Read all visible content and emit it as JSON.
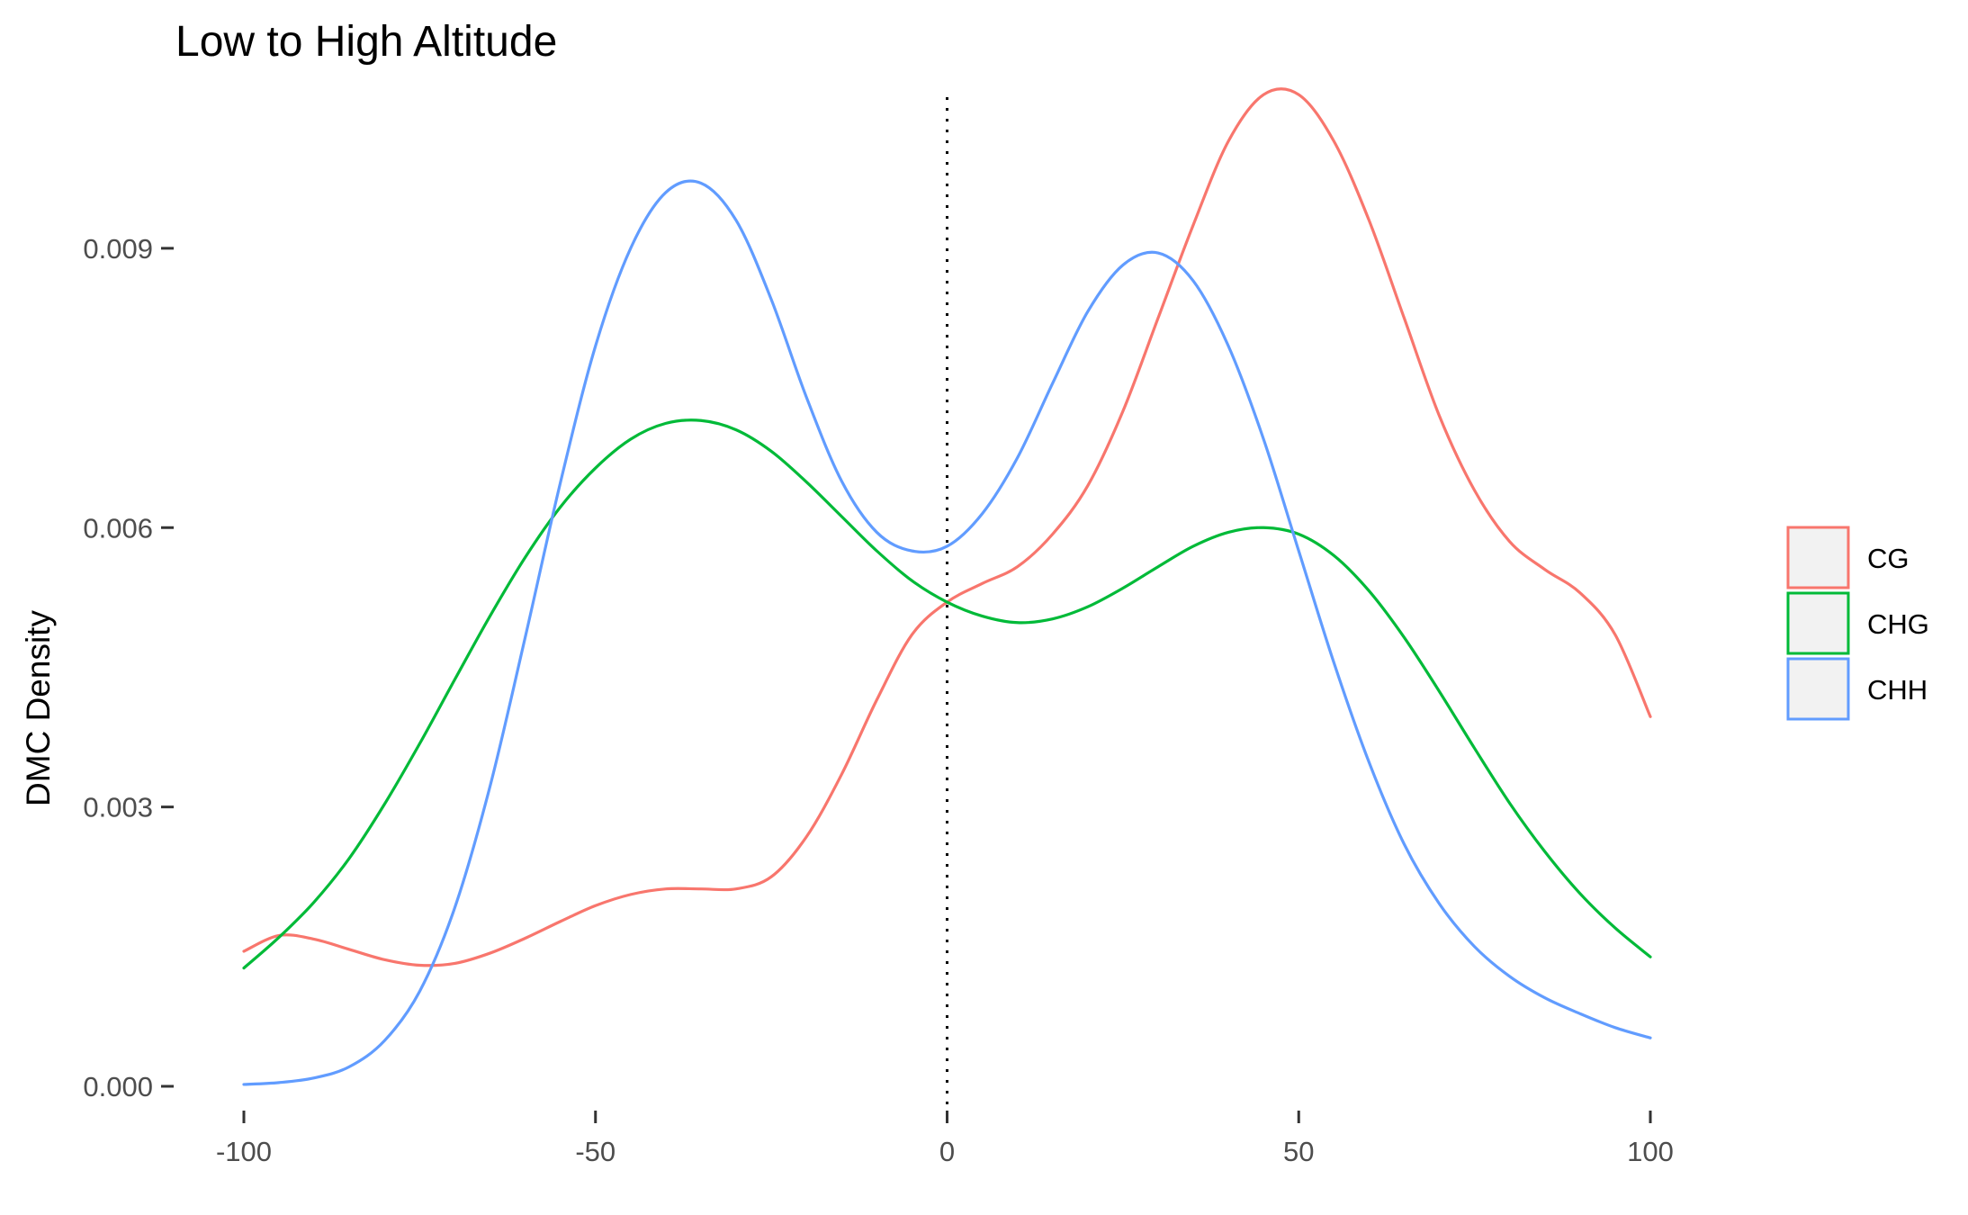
{
  "chart_data": {
    "type": "line",
    "title": "Low to High Altitude",
    "xlabel": "",
    "ylabel": "DMC Density",
    "xlim": [
      -100,
      100
    ],
    "ylim": [
      0,
      0.0107
    ],
    "x_ticks": [
      -100,
      -50,
      0,
      50,
      100
    ],
    "x_tick_labels": [
      "-100",
      "-50",
      "0",
      "50",
      "100"
    ],
    "y_ticks": [
      0.0,
      0.003,
      0.006,
      0.009
    ],
    "y_tick_labels": [
      "0.000",
      "0.003",
      "0.006",
      "0.009"
    ],
    "reference_line": {
      "x": 0,
      "style": "dotted",
      "color": "#000000"
    },
    "grid": false,
    "legend_position": "right",
    "series": [
      {
        "name": "CG",
        "color": "#F8766D",
        "x": [
          -100,
          -95,
          -90,
          -85,
          -80,
          -75,
          -70,
          -65,
          -60,
          -55,
          -50,
          -45,
          -40,
          -35,
          -30,
          -25,
          -20,
          -15,
          -10,
          -5,
          0,
          5,
          10,
          15,
          20,
          25,
          30,
          35,
          40,
          45,
          50,
          55,
          60,
          65,
          70,
          75,
          80,
          85,
          90,
          95,
          100
        ],
        "y": [
          0.00145,
          0.00162,
          0.00158,
          0.00147,
          0.00136,
          0.0013,
          0.00132,
          0.00143,
          0.00159,
          0.00177,
          0.00194,
          0.00206,
          0.00212,
          0.00212,
          0.00212,
          0.00225,
          0.00268,
          0.00335,
          0.00415,
          0.00485,
          0.0052,
          0.0054,
          0.00558,
          0.00593,
          0.00645,
          0.00725,
          0.00825,
          0.00925,
          0.01015,
          0.01065,
          0.01065,
          0.01015,
          0.0093,
          0.00825,
          0.0072,
          0.0064,
          0.00585,
          0.00555,
          0.0053,
          0.00485,
          0.00397
        ]
      },
      {
        "name": "CHG",
        "color": "#00BA38",
        "x": [
          -100,
          -95,
          -90,
          -85,
          -80,
          -75,
          -70,
          -65,
          -60,
          -55,
          -50,
          -45,
          -40,
          -35,
          -30,
          -25,
          -20,
          -15,
          -10,
          -5,
          0,
          5,
          10,
          15,
          20,
          25,
          30,
          35,
          40,
          45,
          50,
          55,
          60,
          65,
          70,
          75,
          80,
          85,
          90,
          95,
          100
        ],
        "y": [
          0.00127,
          0.0016,
          0.00198,
          0.00245,
          0.00303,
          0.00368,
          0.00437,
          0.00505,
          0.00568,
          0.00622,
          0.00664,
          0.00695,
          0.00712,
          0.00715,
          0.00705,
          0.00682,
          0.00649,
          0.00612,
          0.00575,
          0.00543,
          0.0052,
          0.00505,
          0.00498,
          0.00502,
          0.00515,
          0.00535,
          0.00558,
          0.0058,
          0.00595,
          0.006,
          0.00593,
          0.0057,
          0.00532,
          0.00482,
          0.00424,
          0.00363,
          0.00304,
          0.00252,
          0.00207,
          0.0017,
          0.00139
        ]
      },
      {
        "name": "CHH",
        "color": "#619CFF",
        "x": [
          -100,
          -95,
          -90,
          -85,
          -80,
          -75,
          -70,
          -65,
          -60,
          -55,
          -50,
          -45,
          -40,
          -35,
          -30,
          -25,
          -20,
          -15,
          -10,
          -5,
          0,
          5,
          10,
          15,
          20,
          25,
          30,
          35,
          40,
          45,
          50,
          55,
          60,
          65,
          70,
          75,
          80,
          85,
          90,
          95,
          100
        ],
        "y": [
          2e-05,
          4e-05,
          9e-05,
          0.00021,
          0.00049,
          0.00102,
          0.00192,
          0.00322,
          0.00482,
          0.00648,
          0.00795,
          0.009,
          0.0096,
          0.0097,
          0.0093,
          0.00845,
          0.0074,
          0.0065,
          0.00595,
          0.00575,
          0.0058,
          0.00615,
          0.00675,
          0.00755,
          0.00832,
          0.00882,
          0.00895,
          0.00865,
          0.00795,
          0.00695,
          0.00575,
          0.00455,
          0.00348,
          0.0026,
          0.00196,
          0.0015,
          0.00118,
          0.00095,
          0.00078,
          0.00063,
          0.00052
        ]
      }
    ]
  }
}
